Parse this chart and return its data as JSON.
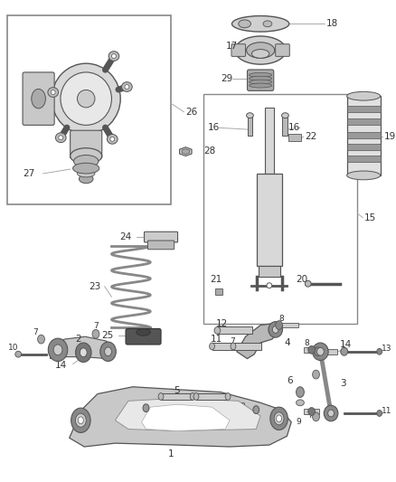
{
  "bg_color": "#ffffff",
  "lc": "#555555",
  "tc": "#333333",
  "fig_width": 4.38,
  "fig_height": 5.33,
  "dpi": 100
}
